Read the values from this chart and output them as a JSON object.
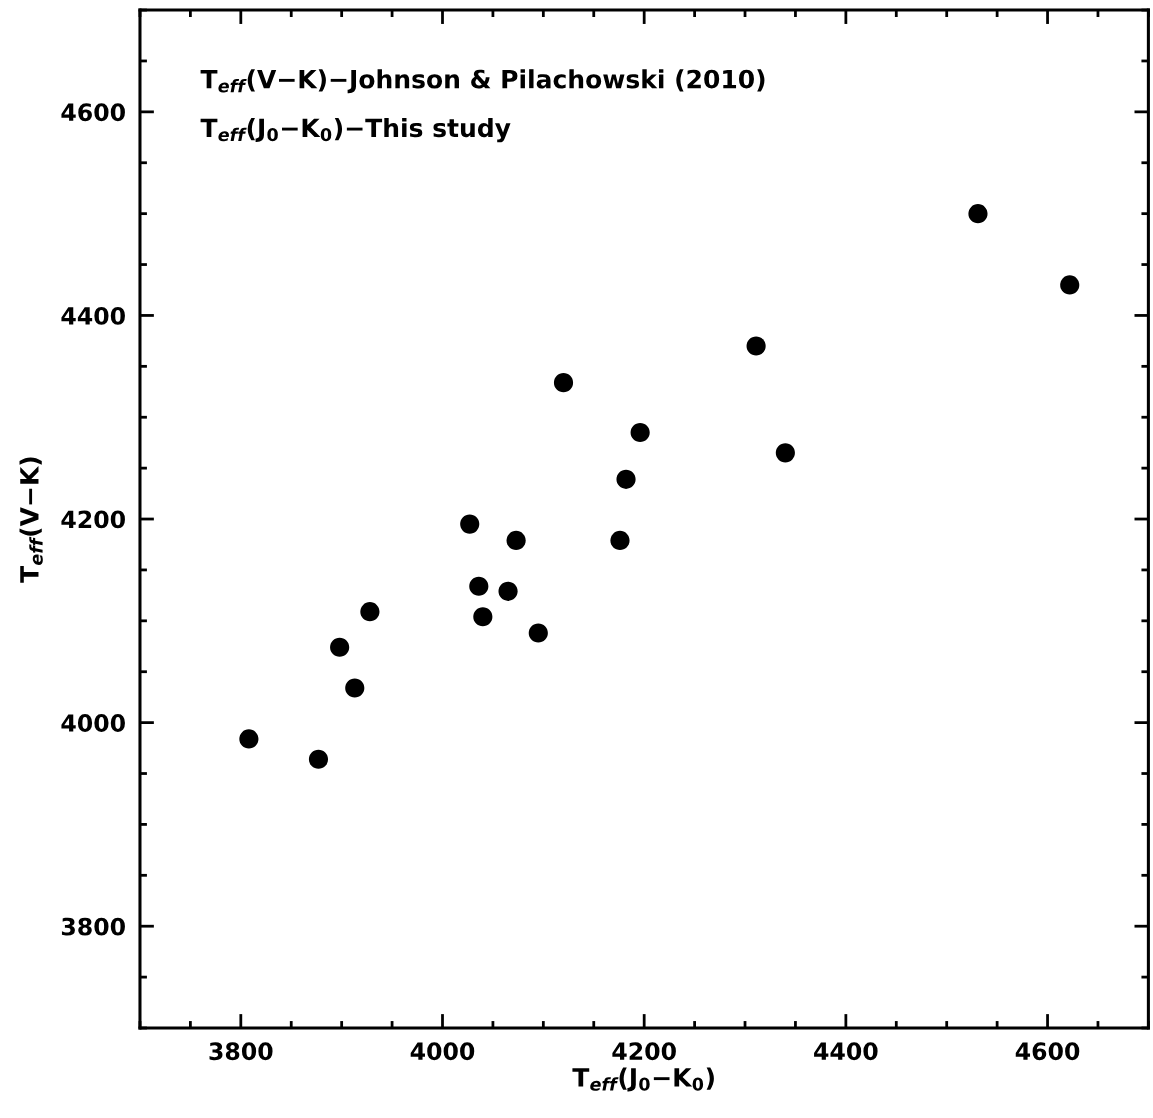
{
  "chart_data": {
    "type": "scatter",
    "xlabel": "T$_{eff}$(J$_{0}$−K$_{0}$)",
    "ylabel": "T$_{eff}$(V−K)",
    "annotations": [
      "T$_{eff}$(V−K)−Johnson & Pilachowski (2010)",
      "T$_{eff}$(J$_{0}$−K$_{0}$)−This study"
    ],
    "x": [
      3808,
      3877,
      3898,
      3913,
      3928,
      4027,
      4036,
      4040,
      4065,
      4073,
      4095,
      4120,
      4176,
      4182,
      4196,
      4311,
      4340,
      4531,
      4622
    ],
    "series": [
      {
        "color": "#000000",
        "values": [
          3984,
          3964,
          4074,
          4034,
          4109,
          4195,
          4134,
          4104,
          4129,
          4179,
          4088,
          4334,
          4179,
          4239,
          4285,
          4370,
          4265,
          4500,
          4430
        ]
      }
    ],
    "marker": "circle",
    "xlim": [
      3700,
      4700
    ],
    "ylim": [
      3700,
      4700
    ],
    "xticks": [
      3800,
      4000,
      4200,
      4400,
      4600
    ],
    "yticks": [
      3800,
      4000,
      4200,
      4400,
      4600
    ],
    "grid": false,
    "legend": false
  }
}
